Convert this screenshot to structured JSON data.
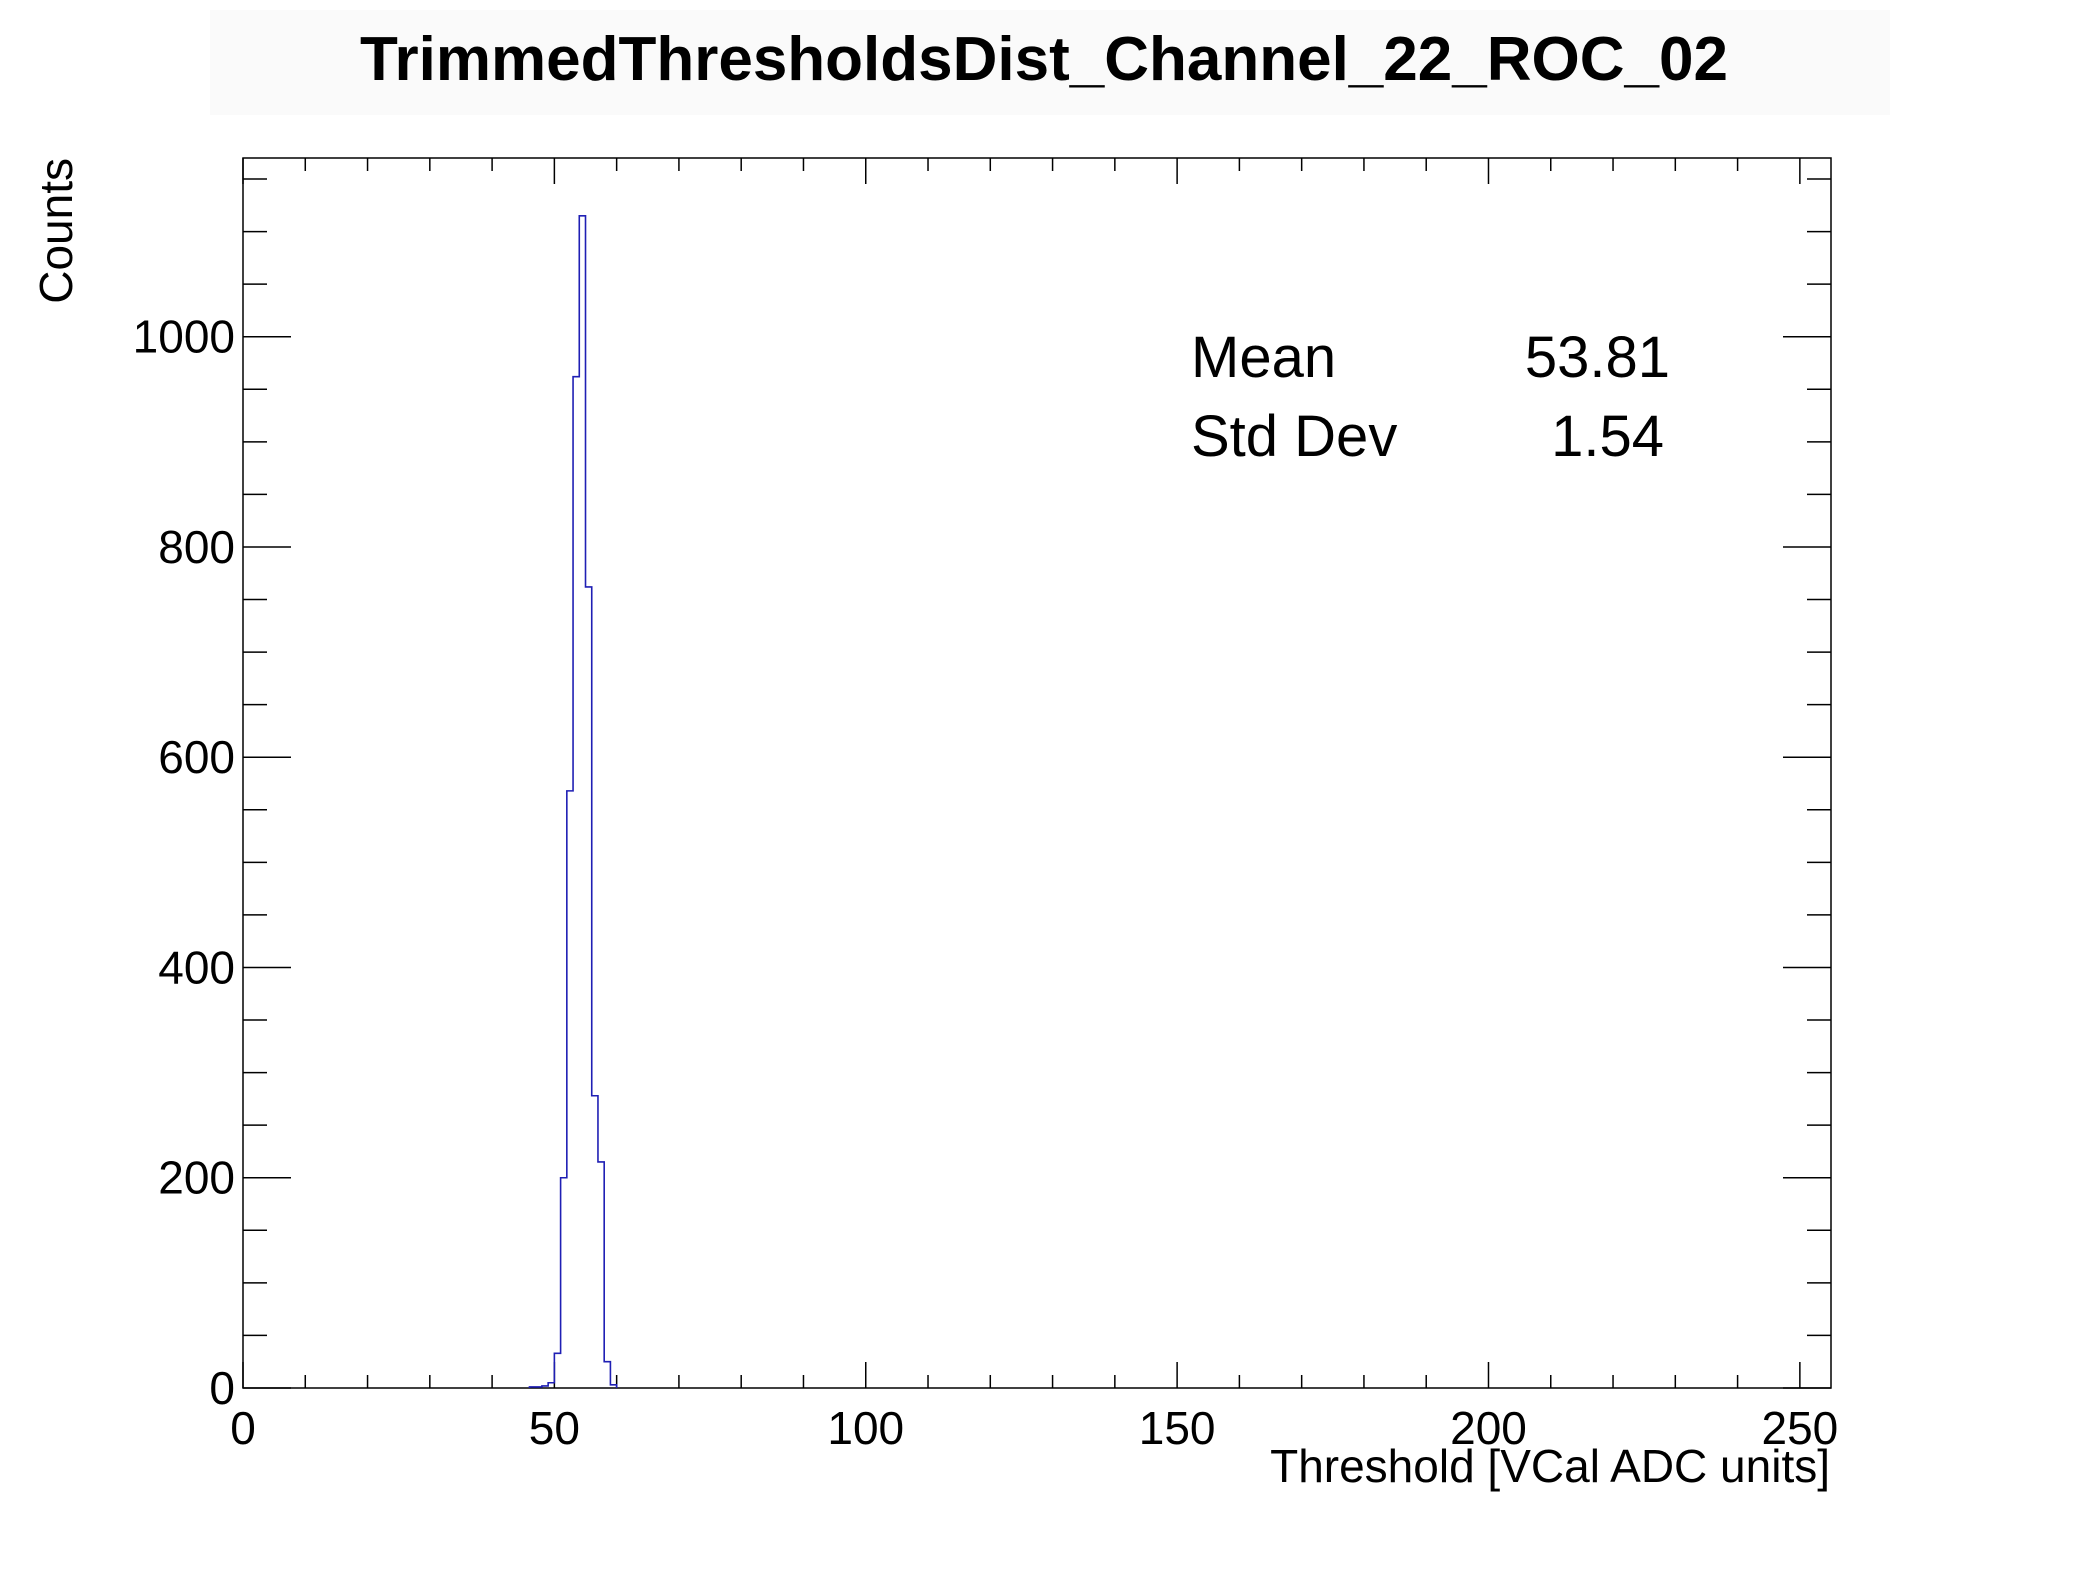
{
  "chart_data": {
    "type": "histogram",
    "title": "TrimmedThresholdsDist_Channel_22_ROC_02",
    "xlabel": "Threshold [VCal ADC units]",
    "ylabel": "Counts",
    "xlim": [
      0,
      255
    ],
    "ylim": [
      0,
      1170
    ],
    "x_ticks": [
      0,
      50,
      100,
      150,
      200,
      250
    ],
    "y_ticks": [
      0,
      200,
      400,
      600,
      800,
      1000
    ],
    "bin_width": 1,
    "line_color": "#1f1fb4",
    "stats": [
      {
        "label": "Mean",
        "value": "53.81"
      },
      {
        "label": "Std Dev",
        "value": "1.54"
      }
    ],
    "bins": [
      {
        "x": 46,
        "y": 1
      },
      {
        "x": 47,
        "y": 1
      },
      {
        "x": 48,
        "y": 2
      },
      {
        "x": 49,
        "y": 5
      },
      {
        "x": 50,
        "y": 33
      },
      {
        "x": 51,
        "y": 200
      },
      {
        "x": 52,
        "y": 568
      },
      {
        "x": 53,
        "y": 962
      },
      {
        "x": 54,
        "y": 1115
      },
      {
        "x": 55,
        "y": 762
      },
      {
        "x": 56,
        "y": 278
      },
      {
        "x": 57,
        "y": 215
      },
      {
        "x": 58,
        "y": 25
      },
      {
        "x": 59,
        "y": 3
      }
    ]
  }
}
